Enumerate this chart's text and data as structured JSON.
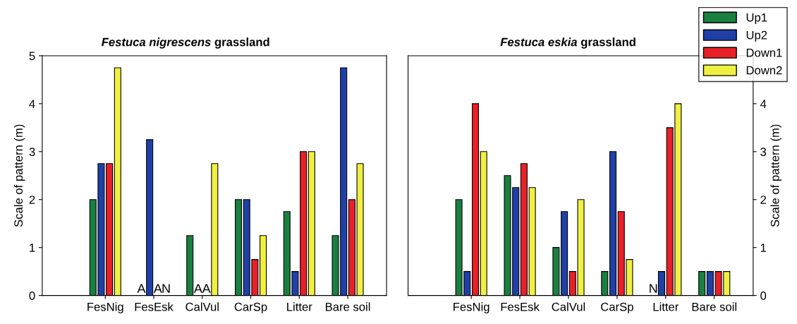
{
  "chart_data": [
    {
      "type": "bar",
      "title": "Festuca nigrescens grassland",
      "ylabel": "Scale of pattern (m)",
      "categories": [
        "FesNig",
        "FesEsk",
        "CalVul",
        "CarSp",
        "Litter",
        "Bare soil"
      ],
      "ylim": [
        0,
        5
      ],
      "yticks": [
        0,
        1,
        2,
        3,
        4,
        5
      ],
      "series": [
        {
          "color": "#1a8040",
          "values": [
            2,
            null,
            1.25,
            2,
            1.75,
            1.25
          ],
          "value_labels": [
            null,
            "A",
            null,
            null,
            null,
            null
          ]
        },
        {
          "color": "#2040a8",
          "values": [
            2.75,
            3.25,
            null,
            2,
            0.5,
            4.75
          ],
          "value_labels": [
            null,
            null,
            "A",
            null,
            null,
            null
          ]
        },
        {
          "color": "#e82028",
          "values": [
            2.75,
            null,
            null,
            0.75,
            3,
            2
          ],
          "value_labels": [
            null,
            "A",
            "A",
            null,
            null,
            null
          ]
        },
        {
          "color": "#f0f040",
          "values": [
            4.75,
            null,
            2.75,
            1.25,
            3,
            2.75
          ],
          "value_labels": [
            null,
            "N",
            null,
            null,
            null,
            null
          ]
        }
      ]
    },
    {
      "type": "bar",
      "title": "Festuca eskia grassland",
      "ylabel": "Scale of pattern (m)",
      "categories": [
        "FesNig",
        "FesEsk",
        "CalVul",
        "CarSp",
        "Litter",
        "Bare soil"
      ],
      "ylim": [
        0,
        5
      ],
      "yticks": [
        0,
        1,
        2,
        3,
        4
      ],
      "legend": "top right",
      "series": [
        {
          "name": "Up1",
          "color": "#1a8040",
          "values": [
            2,
            2.5,
            1,
            0.5,
            null,
            0.5
          ],
          "value_labels": [
            null,
            null,
            null,
            null,
            "N",
            null
          ]
        },
        {
          "name": "Up2",
          "color": "#2040a8",
          "values": [
            0.5,
            2.25,
            1.75,
            3,
            0.5,
            0.5
          ]
        },
        {
          "name": "Down1",
          "color": "#e82028",
          "values": [
            4,
            2.75,
            0.5,
            1.75,
            3.5,
            0.5
          ]
        },
        {
          "name": "Down2",
          "color": "#f0f040",
          "values": [
            3,
            2.25,
            2,
            0.75,
            4,
            0.5
          ]
        }
      ]
    }
  ]
}
